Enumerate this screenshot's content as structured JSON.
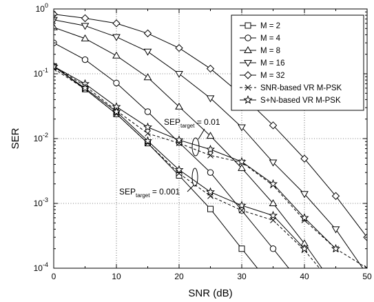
{
  "chart_data": {
    "type": "line",
    "xlabel": "SNR (dB)",
    "ylabel": "SER",
    "xlim": [
      0,
      50
    ],
    "ylim": [
      0.0001,
      1
    ],
    "yscale": "log",
    "grid": true,
    "legend_position": "top-right",
    "x_ticks": [
      "0",
      "10",
      "20",
      "30",
      "40",
      "50"
    ],
    "y_ticks": [
      {
        "base": "10",
        "exp": "0",
        "value": 1
      },
      {
        "base": "10",
        "exp": "-1",
        "value": 0.1
      },
      {
        "base": "10",
        "exp": "-2",
        "value": 0.01
      },
      {
        "base": "10",
        "exp": "-3",
        "value": 0.001
      },
      {
        "base": "10",
        "exp": "-4",
        "value": 0.0001
      }
    ],
    "series": [
      {
        "name": "M = 2",
        "marker": "square",
        "dashed": false,
        "x": [
          0,
          5,
          10,
          15,
          20,
          25,
          30,
          35
        ],
        "y": [
          0.13,
          0.058,
          0.024,
          0.0085,
          0.0027,
          0.00082,
          0.0002,
          5e-05
        ]
      },
      {
        "name": "M = 4",
        "marker": "circle",
        "dashed": false,
        "x": [
          0,
          5,
          10,
          15,
          20,
          25,
          30,
          35,
          40
        ],
        "y": [
          0.3,
          0.165,
          0.072,
          0.026,
          0.0087,
          0.003,
          0.00078,
          0.0002,
          5e-05
        ]
      },
      {
        "name": "M = 8",
        "marker": "triangle-up",
        "dashed": false,
        "x": [
          0,
          5,
          10,
          15,
          20,
          25,
          30,
          35,
          40,
          45
        ],
        "y": [
          0.52,
          0.35,
          0.19,
          0.088,
          0.031,
          0.011,
          0.0035,
          0.001,
          0.00024,
          5e-05
        ]
      },
      {
        "name": "M = 16",
        "marker": "triangle-down",
        "dashed": false,
        "x": [
          0,
          5,
          10,
          15,
          20,
          25,
          30,
          35,
          40,
          45,
          50
        ],
        "y": [
          0.68,
          0.55,
          0.37,
          0.22,
          0.1,
          0.042,
          0.015,
          0.0043,
          0.0014,
          0.0004,
          8e-05
        ]
      },
      {
        "name": "M = 32",
        "marker": "diamond",
        "dashed": false,
        "x": [
          0,
          5,
          10,
          15,
          20,
          25,
          30,
          35,
          40,
          45,
          50
        ],
        "y": [
          0.83,
          0.72,
          0.6,
          0.42,
          0.25,
          0.12,
          0.047,
          0.016,
          0.0049,
          0.0013,
          0.0003
        ]
      },
      {
        "name": "SNR-based VR M-PSK",
        "marker": "x",
        "dashed": true,
        "x": [
          0,
          5,
          10,
          15,
          20,
          25,
          30,
          35,
          40,
          45,
          50
        ],
        "y": [
          0.13,
          0.065,
          0.027,
          0.012,
          0.0085,
          0.0055,
          0.0043,
          0.0019,
          0.00055,
          0.0002,
          0.0001
        ]
      },
      {
        "name": "S+N-based VR M-PSK",
        "marker": "star",
        "dashed": false,
        "x": [
          0,
          5,
          10,
          15,
          20,
          25,
          30,
          35,
          40,
          45
        ],
        "y": [
          0.13,
          0.07,
          0.031,
          0.015,
          0.0095,
          0.0068,
          0.0044,
          0.002,
          0.0006,
          0.0002
        ]
      },
      {
        "name": "",
        "marker": "x",
        "dashed": true,
        "x": [
          0,
          5,
          10,
          15,
          20,
          25,
          30,
          35,
          40,
          45
        ],
        "y": [
          0.12,
          0.058,
          0.024,
          0.0085,
          0.0029,
          0.0013,
          0.00078,
          0.00055,
          0.00019,
          5e-05
        ]
      },
      {
        "name": "",
        "marker": "star",
        "dashed": false,
        "x": [
          0,
          5,
          10,
          15,
          20,
          25,
          30,
          35,
          40
        ],
        "y": [
          0.13,
          0.06,
          0.026,
          0.0092,
          0.0033,
          0.0015,
          0.00093,
          0.00065,
          0.0002
        ]
      }
    ],
    "annotations": [
      {
        "main": "SEP",
        "sub": "target",
        "rest": " = 0.01"
      },
      {
        "main": "SEP",
        "sub": "target",
        "rest": " = 0.001"
      }
    ]
  }
}
